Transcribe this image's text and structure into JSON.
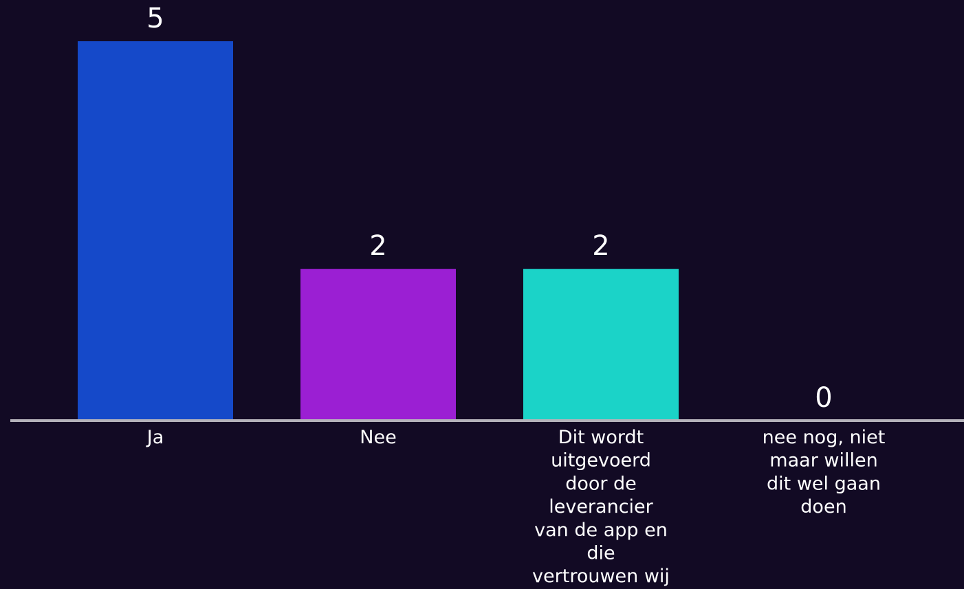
{
  "chart_data": {
    "type": "bar",
    "categories": [
      "Ja",
      "Nee",
      "Dit wordt uitgevoerd door de leverancier van de app en die vertrouwen wij",
      "nee nog, niet maar willen dit wel gaan doen"
    ],
    "category_lines": [
      [
        "Ja"
      ],
      [
        "Nee"
      ],
      [
        "Dit wordt",
        "uitgevoerd",
        "door de",
        "leverancier",
        "van de app en",
        "die",
        "vertrouwen wij"
      ],
      [
        "nee nog, niet",
        "maar willen",
        "dit wel gaan",
        "doen"
      ]
    ],
    "values": [
      5,
      2,
      2,
      0
    ],
    "colors": [
      "#1549c9",
      "#9b1fd3",
      "#1bd3c8",
      "#120a24"
    ],
    "ylim": [
      0,
      5
    ],
    "title": "",
    "xlabel": "",
    "ylabel": "",
    "axis_color": "#b4b2ba",
    "grid": false
  }
}
